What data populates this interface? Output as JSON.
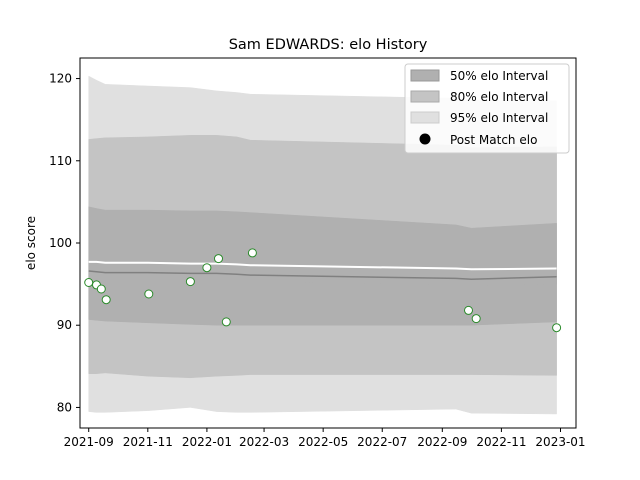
{
  "chart_data": {
    "type": "area",
    "title": "Sam EDWARDS: elo History",
    "xlabel": "",
    "ylabel": "elo score",
    "xlim": [
      "2021-08-23",
      "2023-01-17"
    ],
    "ylim": [
      77.5,
      122.5
    ],
    "x_ticks": [
      "2021-09",
      "2021-11",
      "2022-01",
      "2022-03",
      "2022-05",
      "2022-07",
      "2022-09",
      "2022-11",
      "2023-01"
    ],
    "y_ticks": [
      80,
      90,
      100,
      110,
      120
    ],
    "grid": false,
    "legend_position": "top-right",
    "legend": {
      "band_50": "50% elo Interval",
      "band_80": "80% elo Interval",
      "band_95": "95% elo Interval",
      "points": "Post Match elo"
    },
    "dates": [
      "2021-09-01",
      "2021-09-09",
      "2021-09-18",
      "2021-11-01",
      "2021-12-15",
      "2022-01-11",
      "2022-02-01",
      "2022-02-15",
      "2022-09-15",
      "2022-10-01",
      "2022-12-28"
    ],
    "mean": [
      96.6,
      96.5,
      96.4,
      96.4,
      96.3,
      96.3,
      96.2,
      96.1,
      95.7,
      95.6,
      95.9
    ],
    "upper_line": [
      97.7,
      97.7,
      97.6,
      97.6,
      97.5,
      97.5,
      97.4,
      97.3,
      96.9,
      96.8,
      96.9
    ],
    "band_50": {
      "lower": [
        95.8,
        95.7,
        95.6,
        95.6,
        95.5,
        95.5,
        95.4,
        95.3,
        94.9,
        94.8,
        95.0
      ],
      "upper": [
        104.4,
        104.2,
        104.0,
        104.0,
        103.9,
        103.9,
        103.8,
        103.7,
        102.2,
        101.8,
        102.4
      ]
    },
    "band_80": {
      "lower": [
        90.7,
        90.6,
        90.5,
        90.3,
        90.1,
        90.0,
        90.0,
        90.0,
        90.0,
        90.0,
        90.4
      ]
    },
    "band_95": {
      "lower": [
        84.1,
        84.1,
        84.2,
        83.8,
        83.6,
        83.8,
        83.9,
        84.0,
        84.0,
        84.0,
        83.9
      ],
      "upper": [
        112.6,
        112.7,
        112.8,
        112.9,
        113.1,
        113.1,
        112.9,
        112.5,
        111.9,
        111.6,
        111.7
      ]
    },
    "band_outer": {
      "lower": [
        79.5,
        79.4,
        79.4,
        79.6,
        80.0,
        79.5,
        79.4,
        79.4,
        79.8,
        79.3,
        79.2
      ],
      "upper": [
        120.3,
        119.8,
        119.3,
        119.1,
        118.9,
        118.5,
        118.3,
        118.1,
        117.6,
        117.4,
        117.3
      ]
    },
    "points": [
      {
        "date": "2021-09-01",
        "elo": 95.2
      },
      {
        "date": "2021-09-09",
        "elo": 94.9
      },
      {
        "date": "2021-09-14",
        "elo": 94.4
      },
      {
        "date": "2021-09-19",
        "elo": 93.1
      },
      {
        "date": "2021-11-02",
        "elo": 93.8
      },
      {
        "date": "2021-12-15",
        "elo": 95.3
      },
      {
        "date": "2022-01-01",
        "elo": 97.0
      },
      {
        "date": "2022-01-13",
        "elo": 98.1
      },
      {
        "date": "2022-01-21",
        "elo": 90.4
      },
      {
        "date": "2022-02-17",
        "elo": 98.8
      },
      {
        "date": "2022-09-28",
        "elo": 91.8
      },
      {
        "date": "2022-10-06",
        "elo": 90.8
      },
      {
        "date": "2022-12-28",
        "elo": 89.7
      }
    ],
    "colors": {
      "band_50": "#b0b0b0",
      "band_80": "#c4c4c4",
      "band_95": "#e0e0e0",
      "mean_line": "#808080",
      "upper_line": "#ffffff",
      "point_fill": "#ffffff",
      "point_edge": "#2a8a2a",
      "legend_marker": "#000000"
    }
  }
}
